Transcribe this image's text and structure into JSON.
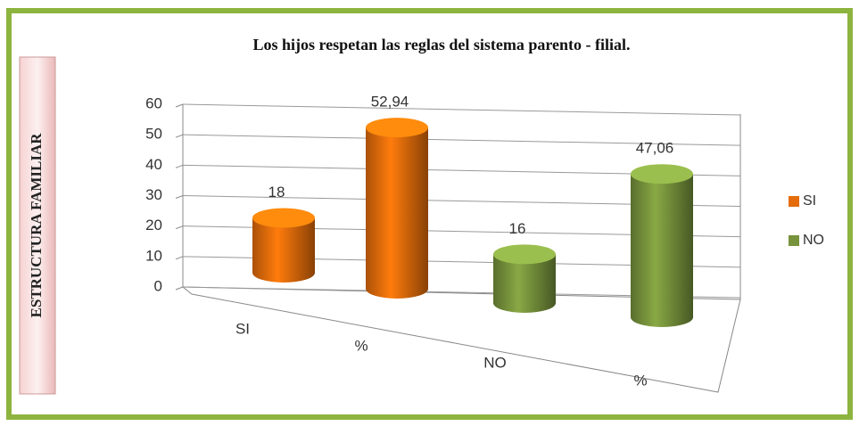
{
  "side_label": "ESTRUCTURA FAMILIAR",
  "chart_data": {
    "type": "bar3d",
    "title": "Los hijos respetan las reglas del sistema parento - filial.",
    "categories": [
      "SI",
      "%",
      "NO",
      "%"
    ],
    "series": [
      {
        "name": "SI",
        "color": "#e46c0a",
        "values": [
          18,
          52.94,
          null,
          null
        ],
        "value_labels": [
          "18",
          "52,94",
          null,
          null
        ]
      },
      {
        "name": "NO",
        "color": "#77933c",
        "values": [
          null,
          null,
          16,
          47.06
        ],
        "value_labels": [
          null,
          null,
          "16",
          "47,06"
        ]
      }
    ],
    "ylim": [
      0,
      60
    ],
    "yticks": [
      0,
      10,
      20,
      30,
      40,
      50,
      60
    ],
    "grid": true,
    "legend": "right"
  }
}
